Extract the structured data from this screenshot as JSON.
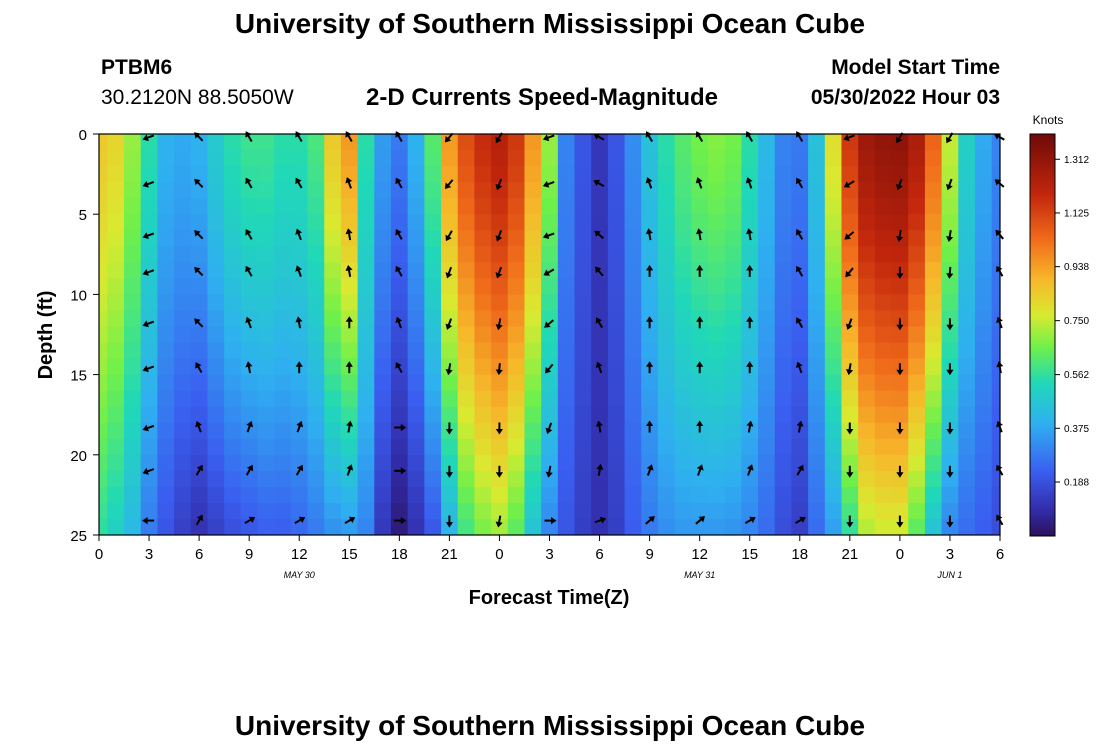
{
  "page": {
    "title_top": "University of Southern Mississippi Ocean Cube",
    "title_bottom": "University of Southern Mississippi Ocean Cube",
    "station_id": "PTBM6",
    "coords": "30.2120N  88.5050W",
    "subtitle": "2-D Currents Speed-Magnitude",
    "model_label": "Model Start Time",
    "model_time": "05/30/2022 Hour 03",
    "colorbar_title": "Knots"
  },
  "chart_data": {
    "type": "heatmap",
    "title": "2-D Currents Speed-Magnitude",
    "xlabel": "Forecast Time(Z)",
    "ylabel": "Depth (ft)",
    "x_hours": [
      0,
      3,
      6,
      9,
      12,
      15,
      18,
      21,
      24,
      27,
      30,
      33,
      36,
      39,
      42,
      45,
      48,
      51,
      54
    ],
    "x_tick_labels": [
      "0",
      "3",
      "6",
      "9",
      "12",
      "15",
      "18",
      "21",
      "0",
      "3",
      "6",
      "9",
      "12",
      "15",
      "18",
      "21",
      "0",
      "3",
      "6"
    ],
    "xlim": [
      0,
      54
    ],
    "day_labels": [
      {
        "hour": 12,
        "label": "MAY 30"
      },
      {
        "hour": 36,
        "label": "MAY 31"
      },
      {
        "hour": 51,
        "label": "JUN 1"
      }
    ],
    "y_ticks": [
      0,
      5,
      10,
      15,
      20,
      25
    ],
    "y_tick_labels": [
      "0",
      "5",
      "10",
      "15",
      "20",
      "25"
    ],
    "ylim": [
      0,
      25
    ],
    "y_inverted": true,
    "colorbar": {
      "label": "Knots",
      "ticks": [
        1.312,
        1.125,
        0.938,
        0.75,
        0.562,
        0.375,
        0.188
      ],
      "tick_labels": [
        "1.312",
        "1.125",
        "0.938",
        "0.750",
        "0.562",
        "0.375",
        "0.188"
      ],
      "range": [
        0.0,
        1.4
      ]
    },
    "speed_profile": [
      {
        "hour": 0,
        "top": 0.85,
        "bottom": 0.55
      },
      {
        "hour": 1,
        "top": 0.82,
        "bottom": 0.5
      },
      {
        "hour": 2,
        "top": 0.7,
        "bottom": 0.42
      },
      {
        "hour": 3,
        "top": 0.55,
        "bottom": 0.28
      },
      {
        "hour": 4,
        "top": 0.4,
        "bottom": 0.2
      },
      {
        "hour": 5,
        "top": 0.38,
        "bottom": 0.14
      },
      {
        "hour": 6,
        "top": 0.4,
        "bottom": 0.1
      },
      {
        "hour": 7,
        "top": 0.48,
        "bottom": 0.14
      },
      {
        "hour": 8,
        "top": 0.55,
        "bottom": 0.18
      },
      {
        "hour": 9,
        "top": 0.58,
        "bottom": 0.2
      },
      {
        "hour": 10,
        "top": 0.58,
        "bottom": 0.22
      },
      {
        "hour": 11,
        "top": 0.55,
        "bottom": 0.22
      },
      {
        "hour": 12,
        "top": 0.55,
        "bottom": 0.24
      },
      {
        "hour": 13,
        "top": 0.6,
        "bottom": 0.28
      },
      {
        "hour": 14,
        "top": 0.85,
        "bottom": 0.32
      },
      {
        "hour": 15,
        "top": 0.95,
        "bottom": 0.34
      },
      {
        "hour": 16,
        "top": 0.55,
        "bottom": 0.3
      },
      {
        "hour": 17,
        "top": 0.35,
        "bottom": 0.12
      },
      {
        "hour": 18,
        "top": 0.28,
        "bottom": 0.03
      },
      {
        "hour": 19,
        "top": 0.4,
        "bottom": 0.1
      },
      {
        "hour": 20,
        "top": 0.62,
        "bottom": 0.2
      },
      {
        "hour": 21,
        "top": 0.95,
        "bottom": 0.4
      },
      {
        "hour": 22,
        "top": 1.1,
        "bottom": 0.58
      },
      {
        "hour": 23,
        "top": 1.18,
        "bottom": 0.66
      },
      {
        "hour": 24,
        "top": 1.22,
        "bottom": 0.7
      },
      {
        "hour": 25,
        "top": 1.15,
        "bottom": 0.62
      },
      {
        "hour": 26,
        "top": 0.95,
        "bottom": 0.45
      },
      {
        "hour": 27,
        "top": 0.7,
        "bottom": 0.3
      },
      {
        "hour": 28,
        "top": 0.3,
        "bottom": 0.2
      },
      {
        "hour": 29,
        "top": 0.2,
        "bottom": 0.14
      },
      {
        "hour": 30,
        "top": 0.12,
        "bottom": 0.1
      },
      {
        "hour": 31,
        "top": 0.2,
        "bottom": 0.14
      },
      {
        "hour": 32,
        "top": 0.32,
        "bottom": 0.22
      },
      {
        "hour": 33,
        "top": 0.45,
        "bottom": 0.28
      },
      {
        "hour": 34,
        "top": 0.55,
        "bottom": 0.32
      },
      {
        "hour": 35,
        "top": 0.62,
        "bottom": 0.34
      },
      {
        "hour": 36,
        "top": 0.66,
        "bottom": 0.34
      },
      {
        "hour": 37,
        "top": 0.68,
        "bottom": 0.34
      },
      {
        "hour": 38,
        "top": 0.66,
        "bottom": 0.33
      },
      {
        "hour": 39,
        "top": 0.55,
        "bottom": 0.3
      },
      {
        "hour": 40,
        "top": 0.42,
        "bottom": 0.25
      },
      {
        "hour": 41,
        "top": 0.3,
        "bottom": 0.18
      },
      {
        "hour": 42,
        "top": 0.28,
        "bottom": 0.14
      },
      {
        "hour": 43,
        "top": 0.45,
        "bottom": 0.25
      },
      {
        "hour": 44,
        "top": 0.8,
        "bottom": 0.35
      },
      {
        "hour": 45,
        "top": 1.15,
        "bottom": 0.55
      },
      {
        "hour": 46,
        "top": 1.28,
        "bottom": 0.72
      },
      {
        "hour": 47,
        "top": 1.31,
        "bottom": 0.75
      },
      {
        "hour": 48,
        "top": 1.32,
        "bottom": 0.75
      },
      {
        "hour": 49,
        "top": 1.25,
        "bottom": 0.62
      },
      {
        "hour": 50,
        "top": 1.05,
        "bottom": 0.45
      },
      {
        "hour": 51,
        "top": 0.75,
        "bottom": 0.3
      },
      {
        "hour": 52,
        "top": 0.5,
        "bottom": 0.25
      },
      {
        "hour": 53,
        "top": 0.38,
        "bottom": 0.22
      },
      {
        "hour": 54,
        "top": 0.3,
        "bottom": 0.18
      }
    ],
    "vector_hours": [
      3,
      6,
      9,
      12,
      15,
      18,
      21,
      24,
      27,
      30,
      33,
      36,
      39,
      42,
      45,
      48,
      51,
      54
    ],
    "vector_depths": [
      0.2,
      3.1,
      6.3,
      8.6,
      11.8,
      14.6,
      18.3,
      21.0,
      24.1
    ],
    "vector_direction_deg": [
      [
        250,
        250,
        250,
        250,
        250,
        250,
        250,
        250,
        270
      ],
      [
        315,
        315,
        315,
        315,
        315,
        330,
        340,
        30,
        30
      ],
      [
        330,
        330,
        330,
        330,
        340,
        350,
        20,
        30,
        60
      ],
      [
        330,
        330,
        340,
        340,
        350,
        0,
        20,
        30,
        60
      ],
      [
        330,
        340,
        350,
        350,
        0,
        0,
        10,
        20,
        60
      ],
      [
        330,
        330,
        330,
        330,
        340,
        330,
        90,
        90,
        90
      ],
      [
        220,
        220,
        210,
        200,
        200,
        190,
        180,
        180,
        180
      ],
      [
        210,
        200,
        200,
        200,
        190,
        185,
        180,
        180,
        190
      ],
      [
        250,
        250,
        250,
        240,
        230,
        220,
        200,
        190,
        90
      ],
      [
        300,
        300,
        310,
        320,
        330,
        340,
        350,
        10,
        70
      ],
      [
        330,
        340,
        350,
        0,
        0,
        0,
        0,
        20,
        50
      ],
      [
        330,
        340,
        350,
        0,
        0,
        0,
        0,
        20,
        50
      ],
      [
        330,
        340,
        350,
        0,
        0,
        0,
        10,
        20,
        60
      ],
      [
        330,
        330,
        330,
        330,
        330,
        340,
        10,
        30,
        60
      ],
      [
        250,
        240,
        230,
        220,
        200,
        190,
        180,
        180,
        180
      ],
      [
        210,
        200,
        190,
        180,
        180,
        180,
        180,
        180,
        180
      ],
      [
        210,
        200,
        190,
        185,
        180,
        180,
        180,
        180,
        180
      ],
      [
        300,
        310,
        320,
        330,
        340,
        350,
        340,
        330,
        330
      ]
    ]
  }
}
